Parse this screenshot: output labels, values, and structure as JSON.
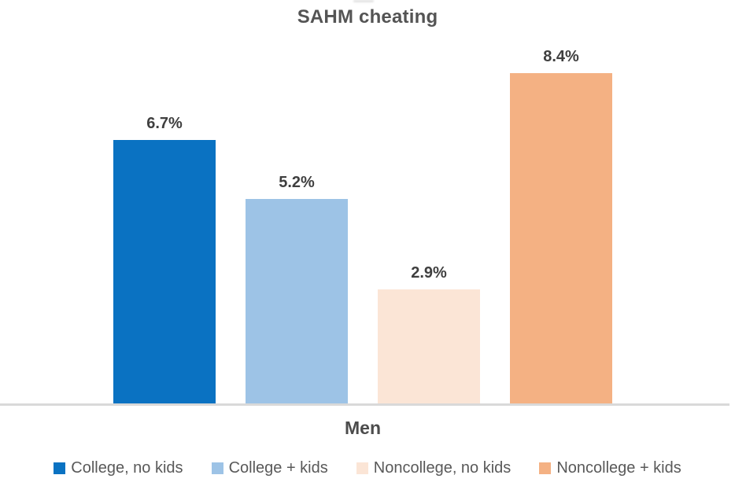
{
  "chart_data": {
    "type": "bar",
    "title": "SAHM cheating",
    "xlabel": "Men",
    "categories": [
      "College, no kids",
      "College + kids",
      "Noncollege, no kids",
      "Noncollege + kids"
    ],
    "values": [
      6.7,
      5.2,
      2.9,
      8.4
    ],
    "value_labels": [
      "6.7%",
      "5.2%",
      "2.9%",
      "8.4%"
    ],
    "colors": [
      "#0A72C2",
      "#9DC3E6",
      "#FBE5D6",
      "#F4B183"
    ],
    "ylim": [
      0,
      9
    ],
    "grid": "off",
    "legend_position": "bottom",
    "axis_line_color": "#D9D9D9"
  }
}
